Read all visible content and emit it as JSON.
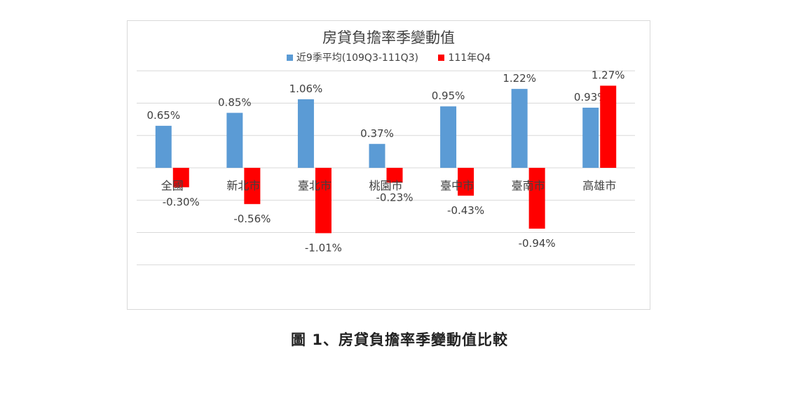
{
  "chart_data": {
    "type": "bar",
    "title": "房貸負擔率季變動值",
    "categories": [
      "全國",
      "新北市",
      "臺北市",
      "桃園市",
      "臺中市",
      "臺南市",
      "高雄市"
    ],
    "series": [
      {
        "name": "近9季平均(109Q3-111Q3)",
        "color": "#5b9bd5",
        "values": [
          0.65,
          0.85,
          1.06,
          0.37,
          0.95,
          1.22,
          0.93
        ],
        "labels": [
          "0.65%",
          "0.85%",
          "1.06%",
          "0.37%",
          "0.95%",
          "1.22%",
          "0.93%"
        ]
      },
      {
        "name": "111年Q4",
        "color": "#ff0000",
        "values": [
          -0.3,
          -0.56,
          -1.01,
          -0.23,
          -0.43,
          -0.94,
          1.27
        ],
        "labels": [
          "-0.30%",
          "-0.56%",
          "-1.01%",
          "-0.23%",
          "-0.43%",
          "-0.94%",
          "1.27%"
        ]
      }
    ],
    "ylim": [
      -1.5,
      1.5
    ],
    "grid": true,
    "legend_position": "top-center"
  },
  "caption": "圖 1、房貸負擔率季變動值比較"
}
